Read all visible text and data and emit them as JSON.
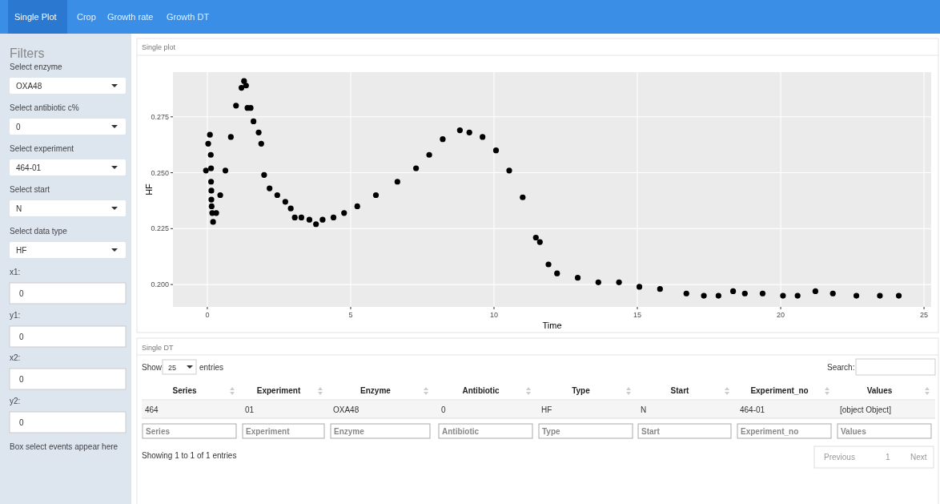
{
  "chart_data": {
    "type": "scatter",
    "title": "Single plot",
    "xlabel": "Time",
    "ylabel": "HF",
    "color": "#000000",
    "marker": "circle",
    "grid": true,
    "xlim": [
      -1.2,
      25.25
    ],
    "ylim": [
      0.19,
      0.295
    ],
    "xticks": [
      0,
      5,
      10,
      15,
      20,
      25
    ],
    "yticks": [
      {
        "value": 0.2,
        "label": "0.200"
      },
      {
        "value": 0.225,
        "label": "0.225"
      },
      {
        "value": 0.25,
        "label": "0.250"
      },
      {
        "value": 0.275,
        "label": "0.275"
      }
    ],
    "x": [
      -0.05,
      0.03,
      0.09,
      0.12,
      0.13,
      0.13,
      0.14,
      0.14,
      0.15,
      0.17,
      0.2,
      0.31,
      0.45,
      0.63,
      0.82,
      1.0,
      1.19,
      1.28,
      1.35,
      1.4,
      1.51,
      1.61,
      1.79,
      1.88,
      1.98,
      2.17,
      2.44,
      2.72,
      2.91,
      3.05,
      3.28,
      3.56,
      3.79,
      4.02,
      4.4,
      4.77,
      5.23,
      5.88,
      6.63,
      7.28,
      7.74,
      8.21,
      8.81,
      9.14,
      9.6,
      10.07,
      10.53,
      11.0,
      11.46,
      11.6,
      11.9,
      12.2,
      12.92,
      13.64,
      14.36,
      15.07,
      15.79,
      16.71,
      17.32,
      17.83,
      18.34,
      18.75,
      19.37,
      20.08,
      20.59,
      21.21,
      21.82,
      22.64,
      23.46,
      24.12
    ],
    "values": [
      0.251,
      0.263,
      0.267,
      0.258,
      0.252,
      0.246,
      0.242,
      0.238,
      0.235,
      0.232,
      0.228,
      0.232,
      0.24,
      0.251,
      0.266,
      0.28,
      0.288,
      0.291,
      0.289,
      0.279,
      0.279,
      0.273,
      0.268,
      0.263,
      0.249,
      0.243,
      0.24,
      0.237,
      0.234,
      0.23,
      0.23,
      0.229,
      0.227,
      0.229,
      0.23,
      0.232,
      0.235,
      0.24,
      0.246,
      0.252,
      0.258,
      0.265,
      0.269,
      0.268,
      0.266,
      0.26,
      0.251,
      0.239,
      0.221,
      0.219,
      0.209,
      0.205,
      0.203,
      0.201,
      0.201,
      0.199,
      0.198,
      0.196,
      0.195,
      0.195,
      0.197,
      0.196,
      0.196,
      0.195,
      0.195,
      0.197,
      0.196,
      0.195,
      0.195,
      0.195
    ],
    "annotations": [
      "Single Plot",
      "Crop",
      "Growth rate",
      "Growth DT",
      "Filters",
      "Select enzyme",
      "OXA48",
      "Select antibiotic c%",
      "0",
      "Select experiment",
      "464-01",
      "Select start",
      "N",
      "Select data type",
      "HF",
      "x1:",
      "0",
      "y1:",
      "0",
      "x2:",
      "0",
      "y2:",
      "0",
      "Box select events appear here",
      "Single DT",
      "Show",
      "25",
      "entries",
      "Search:",
      "Series",
      "Experiment",
      "Enzyme",
      "Antibiotic",
      "Type",
      "Start",
      "Experiment_no",
      "Values",
      "464",
      "01",
      "OXA48",
      "0",
      "HF",
      "N",
      "464-01",
      "[object Object]",
      "Series",
      "Experiment",
      "Enzyme",
      "Antibiotic",
      "Type",
      "Start",
      "Experiment_no",
      "Values",
      "Showing 1 to 1 of 1 entries",
      "Previous",
      "1",
      "Next"
    ]
  }
}
